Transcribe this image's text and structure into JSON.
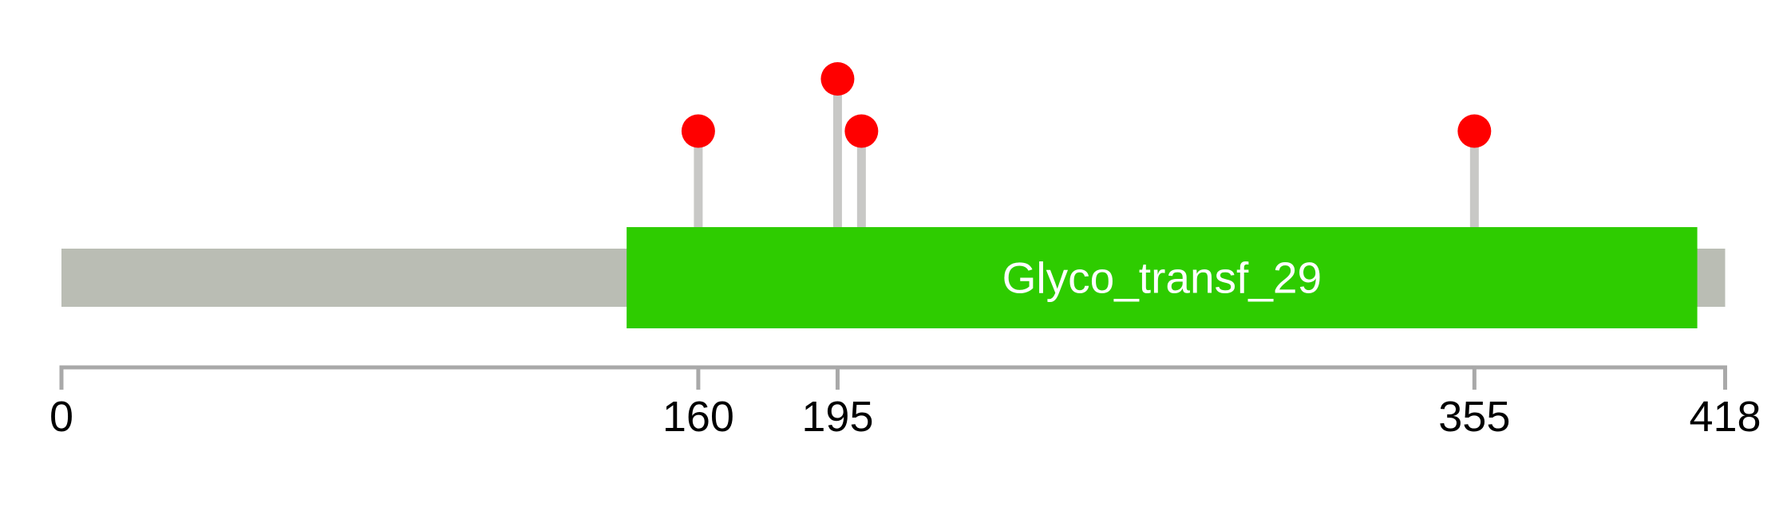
{
  "chart_data": {
    "type": "lollipop",
    "title": "",
    "xlabel": "",
    "ylabel": "",
    "xlim": [
      0,
      418
    ],
    "protein_length_aa": 418,
    "grid": "off",
    "legend": "none",
    "background_color": "#ffffff",
    "axis_ticks": [
      0,
      160,
      195,
      355,
      418
    ],
    "backbone": {
      "start_aa": 0,
      "end_aa": 418,
      "color": "#babdb4"
    },
    "domains": [
      {
        "name": "Glyco_transf_29",
        "start_aa": 142,
        "end_aa": 411,
        "fill_color": "#2ecc00",
        "text_color": "#ffffff"
      }
    ],
    "mutations": [
      {
        "position_aa": 160,
        "tier": 1,
        "marker_color": "#ff0000"
      },
      {
        "position_aa": 195,
        "tier": 2,
        "marker_color": "#ff0000"
      },
      {
        "position_aa": 201,
        "tier": 1,
        "marker_color": "#ff0000"
      },
      {
        "position_aa": 355,
        "tier": 1,
        "marker_color": "#ff0000"
      }
    ],
    "marker_shape": "circle",
    "stick_color": "#c8c8c6",
    "axis_color": "#a9a9a9",
    "tick_label_color": "#000000"
  }
}
